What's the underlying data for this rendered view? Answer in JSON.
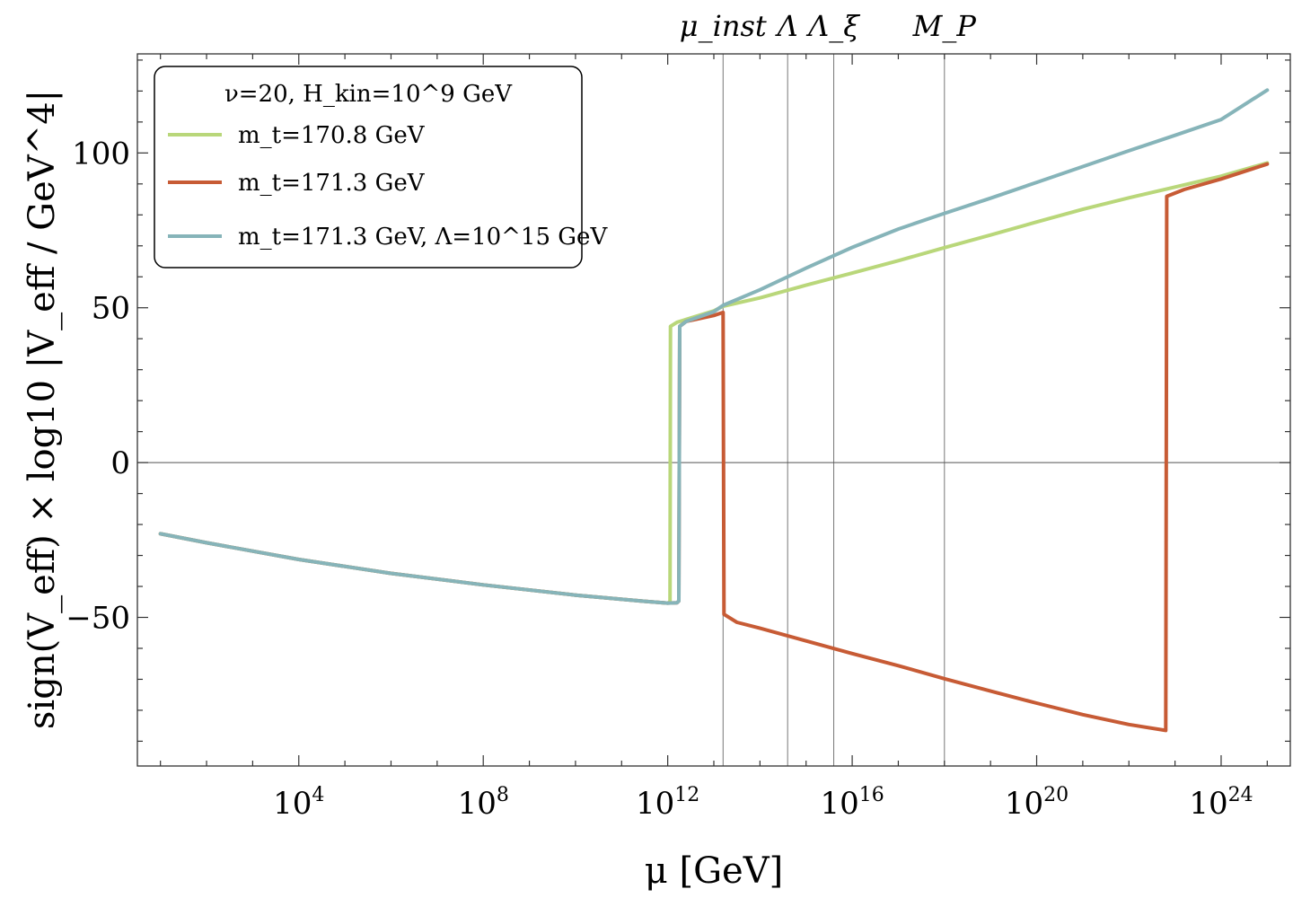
{
  "chart_data": {
    "type": "line",
    "title": "",
    "xlabel": "μ [GeV]",
    "ylabel": "sign(V_eff) × log10 |V_eff / GeV^4|",
    "x_scale": "log10",
    "xlim_log10": [
      0.5,
      25.5
    ],
    "ylim": [
      -98,
      132
    ],
    "x_ticks": [
      {
        "base": "10",
        "exp": "4",
        "log10": 4
      },
      {
        "base": "10",
        "exp": "8",
        "log10": 8
      },
      {
        "base": "10",
        "exp": "12",
        "log10": 12
      },
      {
        "base": "10",
        "exp": "16",
        "log10": 16
      },
      {
        "base": "10",
        "exp": "20",
        "log10": 20
      },
      {
        "base": "10",
        "exp": "24",
        "log10": 24
      }
    ],
    "y_ticks": [
      {
        "label": "100",
        "value": 100
      },
      {
        "label": "50",
        "value": 50
      },
      {
        "label": "0",
        "value": 0
      },
      {
        "label": "−50",
        "value": -50
      }
    ],
    "zero_line": true,
    "reference_lines": [
      {
        "label": "μ_inst",
        "log10": 13.2
      },
      {
        "label": "Λ",
        "log10": 14.6
      },
      {
        "label": "Λ_ξ",
        "log10": 15.6
      },
      {
        "label": "M_P",
        "log10": 18.0
      }
    ],
    "legend": {
      "position": "top-left",
      "header": "ν=20, H_kin=10^9 GeV",
      "entries": [
        {
          "series": 0,
          "label": "m_t=170.8 GeV"
        },
        {
          "series": 1,
          "label": "m_t=171.3 GeV"
        },
        {
          "series": 2,
          "label": "m_t=171.3 GeV, Λ=10^15 GeV"
        }
      ]
    },
    "series": [
      {
        "name": "m_t=170.8 GeV",
        "color": "#b9d77a",
        "points": [
          [
            1.0,
            -23
          ],
          [
            2,
            -25.9
          ],
          [
            4,
            -31.3
          ],
          [
            6,
            -35.8
          ],
          [
            8,
            -39.5
          ],
          [
            10,
            -42.8
          ],
          [
            11.5,
            -44.8
          ],
          [
            12.0,
            -45.4
          ],
          [
            12.05,
            -45
          ],
          [
            12.06,
            44
          ],
          [
            12.2,
            45.3
          ],
          [
            13,
            49
          ],
          [
            13.2,
            50.5
          ],
          [
            14,
            53.2
          ],
          [
            15,
            57.3
          ],
          [
            16,
            61.2
          ],
          [
            17,
            65.2
          ],
          [
            18,
            69.4
          ],
          [
            19,
            73.5
          ],
          [
            20,
            77.7
          ],
          [
            21,
            81.8
          ],
          [
            22,
            85.5
          ],
          [
            23,
            89
          ],
          [
            24,
            92.5
          ],
          [
            25.0,
            96.8
          ]
        ]
      },
      {
        "name": "m_t=171.3 GeV",
        "color": "#c75b35",
        "points": [
          [
            1.0,
            -23
          ],
          [
            2,
            -25.9
          ],
          [
            4,
            -31.3
          ],
          [
            6,
            -35.8
          ],
          [
            8,
            -39.5
          ],
          [
            10,
            -42.8
          ],
          [
            11.5,
            -44.8
          ],
          [
            12.0,
            -45.4
          ],
          [
            12.2,
            -45.3
          ],
          [
            12.24,
            -44.7
          ],
          [
            12.26,
            44
          ],
          [
            12.4,
            45.6
          ],
          [
            13,
            47.5
          ],
          [
            13.2,
            48.5
          ],
          [
            13.22,
            -49
          ],
          [
            13.5,
            -51.6
          ],
          [
            14,
            -53.5
          ],
          [
            15,
            -57.6
          ],
          [
            16,
            -61.7
          ],
          [
            17,
            -65.6
          ],
          [
            18,
            -69.8
          ],
          [
            19,
            -73.8
          ],
          [
            20,
            -77.7
          ],
          [
            21,
            -81.4
          ],
          [
            22,
            -84.6
          ],
          [
            22.8,
            -86.5
          ],
          [
            22.82,
            86
          ],
          [
            23.2,
            88.2
          ],
          [
            24,
            91.6
          ],
          [
            25.0,
            96.4
          ]
        ]
      },
      {
        "name": "m_t=171.3 GeV, Λ=10^15 GeV",
        "color": "#86b4b9",
        "points": [
          [
            1.0,
            -23
          ],
          [
            2,
            -25.9
          ],
          [
            4,
            -31.3
          ],
          [
            6,
            -35.8
          ],
          [
            8,
            -39.5
          ],
          [
            10,
            -42.8
          ],
          [
            11.5,
            -44.8
          ],
          [
            12.0,
            -45.4
          ],
          [
            12.2,
            -45.3
          ],
          [
            12.24,
            -44.7
          ],
          [
            12.26,
            44
          ],
          [
            12.4,
            45.6
          ],
          [
            13,
            48.7
          ],
          [
            13.2,
            50.8
          ],
          [
            14,
            55.8
          ],
          [
            15,
            62.8
          ],
          [
            16,
            69.5
          ],
          [
            17,
            75.4
          ],
          [
            18,
            80.5
          ],
          [
            19,
            85.4
          ],
          [
            20,
            90.5
          ],
          [
            21,
            95.6
          ],
          [
            22,
            100.7
          ],
          [
            23,
            105.7
          ],
          [
            24,
            110.8
          ],
          [
            25.0,
            120.3
          ]
        ]
      }
    ]
  }
}
